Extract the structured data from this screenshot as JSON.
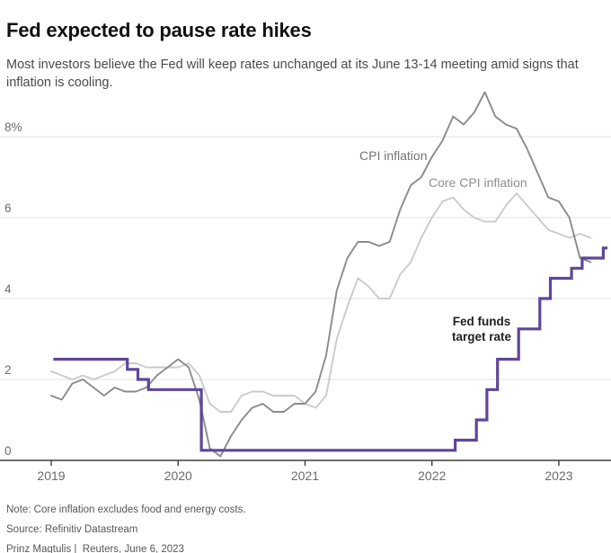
{
  "header": {
    "title": "Fed expected to pause rate hikes",
    "subtitle": "Most investors believe the Fed will keep rates unchanged at its June 13-14 meeting amid signs that inflation is cooling."
  },
  "footer": {
    "note": "Note: Core inflation excludes food and energy costs.",
    "source": "Source: Refinitiv Datastream",
    "byline": "Prinz Magtulis |  Reuters, June 6, 2023"
  },
  "colors": {
    "cpi_line": "#8b8b8b",
    "core_line": "#cbcbcb",
    "fed_line": "#5f4699",
    "grid": "#e3e3e3",
    "axis": "#3d3d3d",
    "tick_text": "#6b6b6b",
    "cpi_label": "#737373",
    "core_label": "#8f8f8f",
    "fed_label": "#1f1f1f"
  },
  "chart_data": {
    "type": "line",
    "title": "Fed expected to pause rate hikes",
    "xlabel": "",
    "ylabel": "percent",
    "ylim": [
      0,
      9.3
    ],
    "grid": "horizontal",
    "y_ticks": [
      {
        "value": 0,
        "label": "0"
      },
      {
        "value": 2,
        "label": "2"
      },
      {
        "value": 4,
        "label": "4"
      },
      {
        "value": 6,
        "label": "6"
      },
      {
        "value": 8,
        "label": "8%"
      }
    ],
    "x_ticks": [
      {
        "month": "2019-01",
        "label": "2019"
      },
      {
        "month": "2020-01",
        "label": "2020"
      },
      {
        "month": "2021-01",
        "label": "2021"
      },
      {
        "month": "2022-01",
        "label": "2022"
      },
      {
        "month": "2023-01",
        "label": "2023"
      }
    ],
    "series": [
      {
        "name": "CPI inflation",
        "start_month": "2019-01",
        "values": [
          1.6,
          1.5,
          1.9,
          2.0,
          1.8,
          1.6,
          1.8,
          1.7,
          1.7,
          1.8,
          2.1,
          2.3,
          2.5,
          2.3,
          1.5,
          0.3,
          0.1,
          0.6,
          1.0,
          1.3,
          1.4,
          1.2,
          1.2,
          1.4,
          1.4,
          1.7,
          2.6,
          4.2,
          5.0,
          5.4,
          5.4,
          5.3,
          5.4,
          6.2,
          6.8,
          7.0,
          7.5,
          7.9,
          8.5,
          8.3,
          8.6,
          9.1,
          8.5,
          8.3,
          8.2,
          7.7,
          7.1,
          6.5,
          6.4,
          6.0,
          5.0,
          4.9
        ]
      },
      {
        "name": "Core CPI inflation",
        "start_month": "2019-01",
        "values": [
          2.2,
          2.1,
          2.0,
          2.1,
          2.0,
          2.1,
          2.2,
          2.4,
          2.4,
          2.3,
          2.3,
          2.3,
          2.3,
          2.4,
          2.1,
          1.4,
          1.2,
          1.2,
          1.6,
          1.7,
          1.7,
          1.6,
          1.6,
          1.6,
          1.4,
          1.3,
          1.6,
          3.0,
          3.8,
          4.5,
          4.3,
          4.0,
          4.0,
          4.6,
          4.9,
          5.5,
          6.0,
          6.4,
          6.5,
          6.2,
          6.0,
          5.9,
          5.9,
          6.3,
          6.6,
          6.3,
          6.0,
          5.7,
          5.6,
          5.5,
          5.6,
          5.5
        ]
      }
    ],
    "fed_funds_steps": [
      {
        "month": "2019-01",
        "rate": 2.5
      },
      {
        "month": "2019-08",
        "rate": 2.25
      },
      {
        "month": "2019-09",
        "rate": 2.0
      },
      {
        "month": "2019-10",
        "rate": 1.75
      },
      {
        "month": "2020-03",
        "rate": 0.25
      },
      {
        "month": "2022-03",
        "rate": 0.5
      },
      {
        "month": "2022-05",
        "rate": 1.0
      },
      {
        "month": "2022-06",
        "rate": 1.75
      },
      {
        "month": "2022-07",
        "rate": 2.5
      },
      {
        "month": "2022-09",
        "rate": 3.25
      },
      {
        "month": "2022-11",
        "rate": 4.0
      },
      {
        "month": "2022-12",
        "rate": 4.5
      },
      {
        "month": "2023-02",
        "rate": 4.75
      },
      {
        "month": "2023-03",
        "rate": 5.0
      },
      {
        "month": "2023-05",
        "rate": 5.25
      }
    ],
    "fed_funds_end_month": "2023-05",
    "annotations": [
      {
        "id": "cpi-label",
        "lines": [
          "CPI inflation"
        ],
        "anchor": "start"
      },
      {
        "id": "core-label",
        "lines": [
          "Core CPI inflation"
        ],
        "anchor": "start"
      },
      {
        "id": "fed-label",
        "lines": [
          "Fed funds",
          "target rate"
        ],
        "anchor": "middle"
      }
    ]
  }
}
